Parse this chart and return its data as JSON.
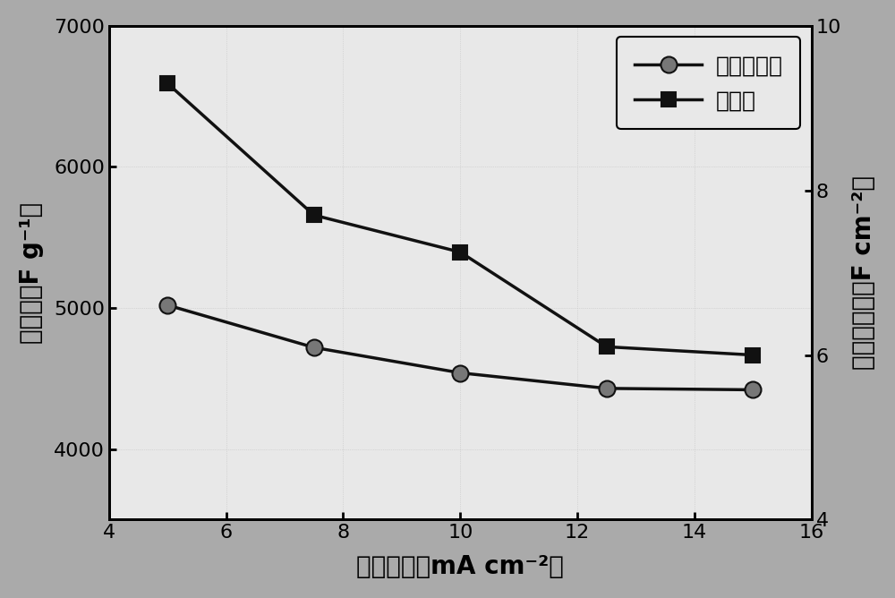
{
  "x": [
    5,
    7.5,
    10,
    12.5,
    15
  ],
  "y_circle": [
    5020,
    4720,
    4540,
    4430,
    4420
  ],
  "y_square": [
    9.3,
    7.7,
    7.25,
    6.1,
    6.0
  ],
  "xlabel": "电流密度（mA cm⁻²）",
  "ylabel_left": "比容量（F g⁻¹）",
  "ylabel_right": "面积比容量（F cm⁻²）",
  "legend_circle": "面积比容量",
  "legend_square": "比容量",
  "xlim": [
    4,
    16
  ],
  "xticks": [
    4,
    6,
    8,
    10,
    12,
    14,
    16
  ],
  "ylim_left": [
    3500,
    7000
  ],
  "yticks_left": [
    4000,
    5000,
    6000,
    7000
  ],
  "ylim_right": [
    4.0,
    10.0
  ],
  "yticks_right": [
    4,
    6,
    8,
    10
  ],
  "line_color": "#111111",
  "bg_color": "#e8e8e8",
  "fig_bg_color": "#aaaaaa",
  "font_size_label": 20,
  "font_size_tick": 16,
  "font_size_legend": 18,
  "marker_size_circle": 13,
  "marker_size_square": 11,
  "linewidth": 2.5
}
